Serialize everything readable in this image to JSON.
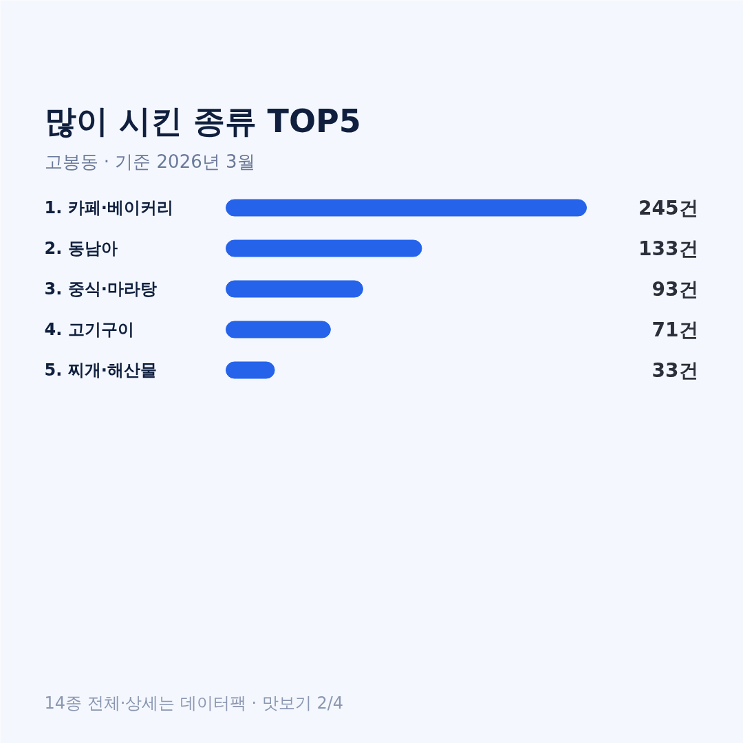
{
  "chart_data": {
    "type": "bar",
    "orientation": "horizontal",
    "title": "많이 시킨 종류 TOP5",
    "subtitle": "고봉동 · 기준 2026년 3월",
    "categories": [
      "1. 카페·베이커리",
      "2. 동남아",
      "3. 중식·마라탕",
      "4. 고기구이",
      "5. 찌개·해산물"
    ],
    "values": [
      245,
      133,
      93,
      71,
      33
    ],
    "value_labels": [
      "245건",
      "133건",
      "93건",
      "71건",
      "33건"
    ],
    "color": "#2563eb",
    "annotations": [
      "14종 전체·상세는 데이터팩 · 맛보기 2/4"
    ]
  }
}
